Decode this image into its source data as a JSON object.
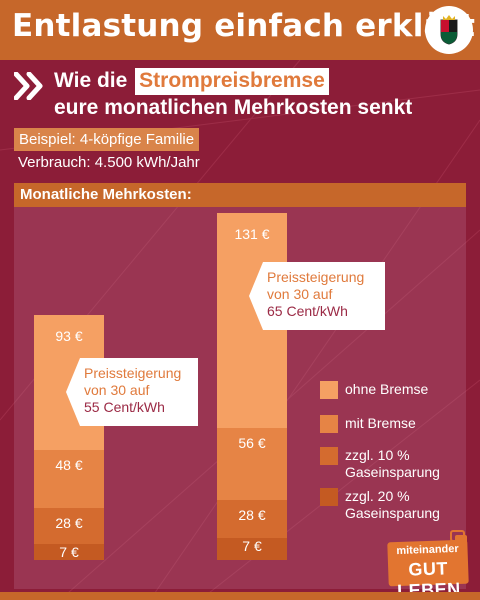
{
  "header": {
    "title": "Entlastung einfach erklärt",
    "crest_icon": "rheinland-pfalz-crest-icon"
  },
  "subtitle": {
    "line1_prefix": "Wie die",
    "line1_highlight": "Strompreisbremse",
    "line2": "eure monatlichen Mehrkosten senkt",
    "icon": "double-chevron-right-icon"
  },
  "example": {
    "label": "Beispiel: 4-köpfige Familie",
    "usage": "Verbrauch: 4.500 kWh/Jahr"
  },
  "panel": {
    "title": "Monatliche Mehrkosten:"
  },
  "colors": {
    "header": "#c6672a",
    "background": "#8c1d38",
    "ohne_bremse": "#f5a063",
    "mit_bremse": "#e68445",
    "gas10": "#d46b2f",
    "gas20": "#c45a22"
  },
  "chart_data": {
    "type": "bar",
    "stacked": true,
    "categories": [
      "55 Cent/kWh",
      "65 Cent/kWh"
    ],
    "series": [
      {
        "name": "ohne Bremse",
        "values": [
          93,
          131
        ]
      },
      {
        "name": "mit Bremse",
        "values": [
          48,
          56
        ]
      },
      {
        "name": "zzgl. 10 % Gaseinsparung",
        "values": [
          28,
          28
        ]
      },
      {
        "name": "zzgl. 20 % Gaseinsparung",
        "values": [
          7,
          7
        ]
      }
    ],
    "bar_labels": [
      [
        "93 €",
        "48 €",
        "28 €",
        "7 €"
      ],
      [
        "131 €",
        "56 €",
        "28 €",
        "7 €"
      ]
    ],
    "callouts": [
      {
        "line1": "Preissteigerung",
        "line2": "von 30 auf",
        "line3": "55 Cent/kWh"
      },
      {
        "line1": "Preissteigerung",
        "line2": "von 30 auf",
        "line3": "65 Cent/kWh"
      }
    ],
    "legend": [
      {
        "label_line1": "ohne Bremse",
        "label_line2": ""
      },
      {
        "label_line1": "mit Bremse",
        "label_line2": ""
      },
      {
        "label_line1": "zzgl. 10 %",
        "label_line2": "Gaseinsparung"
      },
      {
        "label_line1": "zzgl. 20 %",
        "label_line2": "Gaseinsparung"
      }
    ],
    "legend_position": "right"
  },
  "logo": {
    "line1": "miteinander",
    "line2": "GUT LEBEN"
  }
}
